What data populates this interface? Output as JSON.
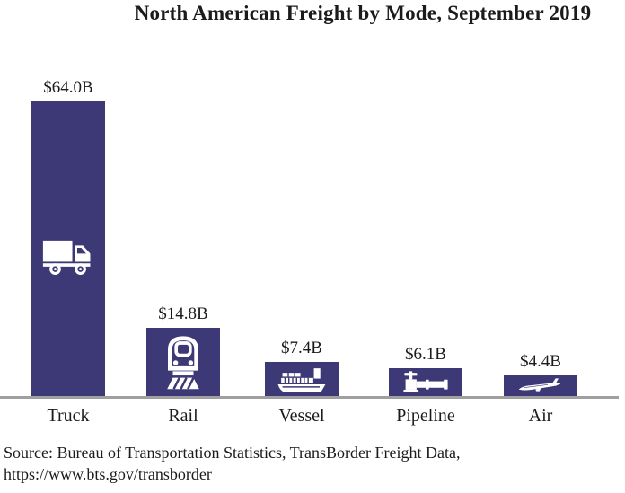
{
  "title": "North American Freight by Mode, September 2019",
  "chart_data": {
    "type": "bar",
    "title": "North American Freight by Mode, September 2019",
    "categories": [
      "Truck",
      "Rail",
      "Vessel",
      "Pipeline",
      "Air"
    ],
    "values": [
      64.0,
      14.8,
      7.4,
      6.1,
      4.4
    ],
    "value_labels": [
      "$64.0B",
      "$14.8B",
      "$7.4B",
      "$6.1B",
      "$4.4B"
    ],
    "unit": "USD billions",
    "ylim": [
      0,
      64
    ],
    "grid": false,
    "legend": false,
    "bar_color": "#3d3876",
    "icons": [
      "truck-icon",
      "train-icon",
      "ship-icon",
      "pipeline-icon",
      "airplane-icon"
    ]
  },
  "source": {
    "line1": "Source: Bureau of Transportation Statistics, TransBorder Freight Data,",
    "line2": "https://www.bts.gov/transborder"
  },
  "colors": {
    "bar": "#3d3876",
    "axis": "#a0a0a0",
    "icon": "#ffffff",
    "text": "#1b1b1b",
    "background": "#ffffff"
  }
}
